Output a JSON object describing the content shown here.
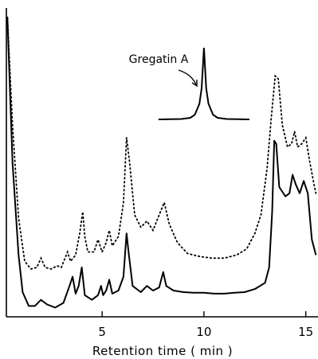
{
  "chart_data": {
    "type": "line",
    "title": "",
    "xlabel": "Retention  time  ( min )",
    "ylabel": "",
    "xlim": [
      0.3,
      15.6
    ],
    "ylim": [
      0,
      100
    ],
    "x_ticks": [
      5,
      10,
      15
    ],
    "x_tick_labels": [
      "5",
      "10",
      "15"
    ],
    "grid": false,
    "series": [
      {
        "style": "solid",
        "points": [
          [
            0.35,
            97
          ],
          [
            0.6,
            50
          ],
          [
            0.9,
            20
          ],
          [
            1.1,
            8
          ],
          [
            1.4,
            3.5
          ],
          [
            1.7,
            3.5
          ],
          [
            2.0,
            5.5
          ],
          [
            2.3,
            4
          ],
          [
            2.7,
            3
          ],
          [
            3.1,
            4.5
          ],
          [
            3.4,
            10
          ],
          [
            3.55,
            13
          ],
          [
            3.7,
            7.5
          ],
          [
            3.85,
            10
          ],
          [
            4.0,
            16
          ],
          [
            4.15,
            7
          ],
          [
            4.5,
            5.5
          ],
          [
            4.8,
            7
          ],
          [
            4.95,
            10
          ],
          [
            5.05,
            7
          ],
          [
            5.2,
            8.5
          ],
          [
            5.35,
            12
          ],
          [
            5.5,
            7.5
          ],
          [
            5.8,
            8.5
          ],
          [
            6.05,
            13
          ],
          [
            6.2,
            27
          ],
          [
            6.3,
            21
          ],
          [
            6.5,
            10
          ],
          [
            6.9,
            8
          ],
          [
            7.2,
            10
          ],
          [
            7.5,
            8.5
          ],
          [
            7.8,
            9.5
          ],
          [
            8.0,
            14.5
          ],
          [
            8.15,
            10
          ],
          [
            8.5,
            8.5
          ],
          [
            9.0,
            8
          ],
          [
            9.5,
            7.8
          ],
          [
            10.0,
            7.8
          ],
          [
            10.5,
            7.5
          ],
          [
            11.0,
            7.5
          ],
          [
            11.5,
            7.8
          ],
          [
            12.0,
            8
          ],
          [
            12.5,
            9
          ],
          [
            13.0,
            11
          ],
          [
            13.2,
            16
          ],
          [
            13.35,
            34
          ],
          [
            13.45,
            57
          ],
          [
            13.55,
            56
          ],
          [
            13.7,
            42
          ],
          [
            14.0,
            39
          ],
          [
            14.2,
            40
          ],
          [
            14.35,
            46
          ],
          [
            14.5,
            43
          ],
          [
            14.7,
            40
          ],
          [
            14.9,
            44
          ],
          [
            15.1,
            40
          ],
          [
            15.3,
            25
          ],
          [
            15.5,
            20
          ]
        ]
      },
      {
        "style": "dotted",
        "points": [
          [
            0.35,
            97
          ],
          [
            0.6,
            62
          ],
          [
            0.9,
            32
          ],
          [
            1.2,
            18
          ],
          [
            1.5,
            15.5
          ],
          [
            1.8,
            16
          ],
          [
            2.0,
            19
          ],
          [
            2.2,
            16
          ],
          [
            2.5,
            15.5
          ],
          [
            2.8,
            16.5
          ],
          [
            3.0,
            16
          ],
          [
            3.3,
            21
          ],
          [
            3.45,
            18
          ],
          [
            3.7,
            20
          ],
          [
            3.9,
            27
          ],
          [
            4.05,
            34
          ],
          [
            4.15,
            26
          ],
          [
            4.3,
            21
          ],
          [
            4.6,
            21
          ],
          [
            4.8,
            25
          ],
          [
            5.0,
            21
          ],
          [
            5.2,
            24
          ],
          [
            5.35,
            28
          ],
          [
            5.5,
            23
          ],
          [
            5.8,
            26
          ],
          [
            6.05,
            37
          ],
          [
            6.2,
            58
          ],
          [
            6.35,
            50
          ],
          [
            6.6,
            33
          ],
          [
            6.9,
            29
          ],
          [
            7.2,
            31
          ],
          [
            7.5,
            28
          ],
          [
            7.8,
            33
          ],
          [
            8.05,
            37
          ],
          [
            8.3,
            30
          ],
          [
            8.7,
            24
          ],
          [
            9.2,
            20.5
          ],
          [
            9.8,
            19.5
          ],
          [
            10.4,
            19
          ],
          [
            11.0,
            19
          ],
          [
            11.6,
            20
          ],
          [
            12.1,
            22
          ],
          [
            12.5,
            27
          ],
          [
            12.8,
            33
          ],
          [
            13.1,
            48
          ],
          [
            13.3,
            64
          ],
          [
            13.5,
            78
          ],
          [
            13.65,
            77
          ],
          [
            13.85,
            62
          ],
          [
            14.1,
            55
          ],
          [
            14.3,
            56
          ],
          [
            14.45,
            60
          ],
          [
            14.6,
            55
          ],
          [
            14.8,
            56
          ],
          [
            15.0,
            58
          ],
          [
            15.2,
            50
          ],
          [
            15.4,
            43
          ],
          [
            15.5,
            40
          ]
        ]
      }
    ],
    "inset": {
      "label": "Gregatin A",
      "peak_x": 10.0,
      "points": [
        [
          -1.0,
          0
        ],
        [
          -0.5,
          0.5
        ],
        [
          -0.3,
          2
        ],
        [
          -0.2,
          6
        ],
        [
          -0.1,
          20
        ],
        [
          -0.05,
          40
        ],
        [
          0.0,
          92
        ],
        [
          0.05,
          40
        ],
        [
          0.1,
          20
        ],
        [
          0.2,
          6
        ],
        [
          0.3,
          2
        ],
        [
          0.5,
          0.5
        ],
        [
          1.0,
          0
        ]
      ]
    }
  }
}
